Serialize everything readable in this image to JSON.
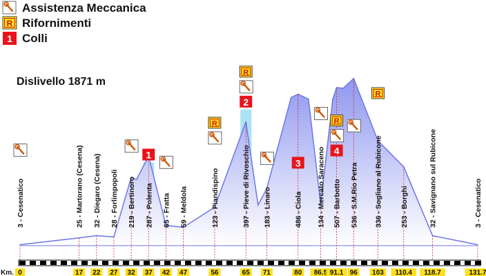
{
  "legend": {
    "assistenza": "Assistenza Meccanica",
    "rifornimenti": "Rifornimenti",
    "colli": "Colli",
    "r_symbol": "R",
    "colle_symbol": "1"
  },
  "dislivello": "Dislivello 1871 m",
  "km_title": "Km.",
  "colors": {
    "profile_fill_top": "#8f97ef",
    "profile_fill_bottom": "#ffffff",
    "profile_line": "#6c76e6",
    "colle_red": "#e8141c",
    "rifornimento_yellow": "#ffe01a",
    "rifornimento_red": "#d21414",
    "climb_highlight": "#a9e3f5",
    "km_box": "#ffe01a",
    "guide_line": "#cc2222"
  },
  "chart_data": {
    "type": "area",
    "title": "",
    "xlabel": "Km.",
    "ylabel": "",
    "xlim": [
      0,
      131.7
    ],
    "ylim": [
      0,
      540
    ],
    "grid": false,
    "profile": [
      {
        "x": 0,
        "y": 3
      },
      {
        "x": 17,
        "y": 25
      },
      {
        "x": 22,
        "y": 32
      },
      {
        "x": 27,
        "y": 28
      },
      {
        "x": 32,
        "y": 219
      },
      {
        "x": 33.5,
        "y": 212
      },
      {
        "x": 37,
        "y": 287
      },
      {
        "x": 42,
        "y": 65
      },
      {
        "x": 47,
        "y": 59
      },
      {
        "x": 56,
        "y": 123
      },
      {
        "x": 65,
        "y": 397
      },
      {
        "x": 68.5,
        "y": 130
      },
      {
        "x": 71,
        "y": 183
      },
      {
        "x": 78,
        "y": 475
      },
      {
        "x": 80,
        "y": 486
      },
      {
        "x": 83,
        "y": 470
      },
      {
        "x": 86.5,
        "y": 134
      },
      {
        "x": 90,
        "y": 470
      },
      {
        "x": 91.1,
        "y": 507
      },
      {
        "x": 93,
        "y": 505
      },
      {
        "x": 96,
        "y": 536
      },
      {
        "x": 103,
        "y": 336
      },
      {
        "x": 110.4,
        "y": 253
      },
      {
        "x": 118.7,
        "y": 32
      },
      {
        "x": 131.7,
        "y": 3
      }
    ],
    "locations": [
      {
        "km": "0",
        "kmv": 0,
        "alt": "3",
        "name": "Cesenatico",
        "assist": true
      },
      {
        "km": "17",
        "kmv": 17,
        "alt": "25",
        "name": "Martorano  (Cesena)"
      },
      {
        "km": "22",
        "kmv": 22,
        "alt": "32",
        "name": "Diegaro  (Cesena)"
      },
      {
        "km": "27",
        "kmv": 27,
        "alt": "28",
        "name": "Forlimpopoli"
      },
      {
        "km": "32",
        "kmv": 32,
        "alt": "219",
        "name": "Bertinoro",
        "assist": true
      },
      {
        "km": "37",
        "kmv": 37,
        "alt": "287",
        "name": "Polenta",
        "climb": "1"
      },
      {
        "km": "42",
        "kmv": 42,
        "alt": "65",
        "name": "Fratta",
        "assist": true
      },
      {
        "km": "47",
        "kmv": 47,
        "alt": "59",
        "name": "Meldola"
      },
      {
        "km": "56",
        "kmv": 56,
        "alt": "123",
        "name": "Piandispino",
        "refuel": true,
        "assist": true
      },
      {
        "km": "65",
        "kmv": 65,
        "alt": "397",
        "name": "Pieve  di  Rivoschio",
        "climb": "2",
        "refuel": true,
        "assist": true
      },
      {
        "km": "71",
        "kmv": 71,
        "alt": "183",
        "name": "Linaro",
        "assist": true
      },
      {
        "km": "80",
        "kmv": 80,
        "alt": "486",
        "name": "Ciola",
        "climb": "3"
      },
      {
        "km": "86.5",
        "kmv": 86.5,
        "alt": "134",
        "name": "Mercato  Saraceno",
        "assist": true
      },
      {
        "km": "91.1",
        "kmv": 91.1,
        "alt": "507",
        "name": "Barbotto",
        "climb": "4",
        "refuel": true,
        "assist": true
      },
      {
        "km": "96",
        "kmv": 96,
        "alt": "536",
        "name": "S.M.Rio  Petra",
        "assist": true
      },
      {
        "km": "103",
        "kmv": 103,
        "alt": "336",
        "name": "Sogliano  al  Rubicone",
        "refuel": true
      },
      {
        "km": "110.4",
        "kmv": 110.4,
        "alt": "253",
        "name": "Borghi"
      },
      {
        "km": "118.7",
        "kmv": 118.7,
        "alt": "32",
        "name": "Savignano  sul  Rubicone"
      },
      {
        "km": "131.7",
        "kmv": 131.7,
        "alt": "3",
        "name": "Cesenatico"
      }
    ]
  }
}
